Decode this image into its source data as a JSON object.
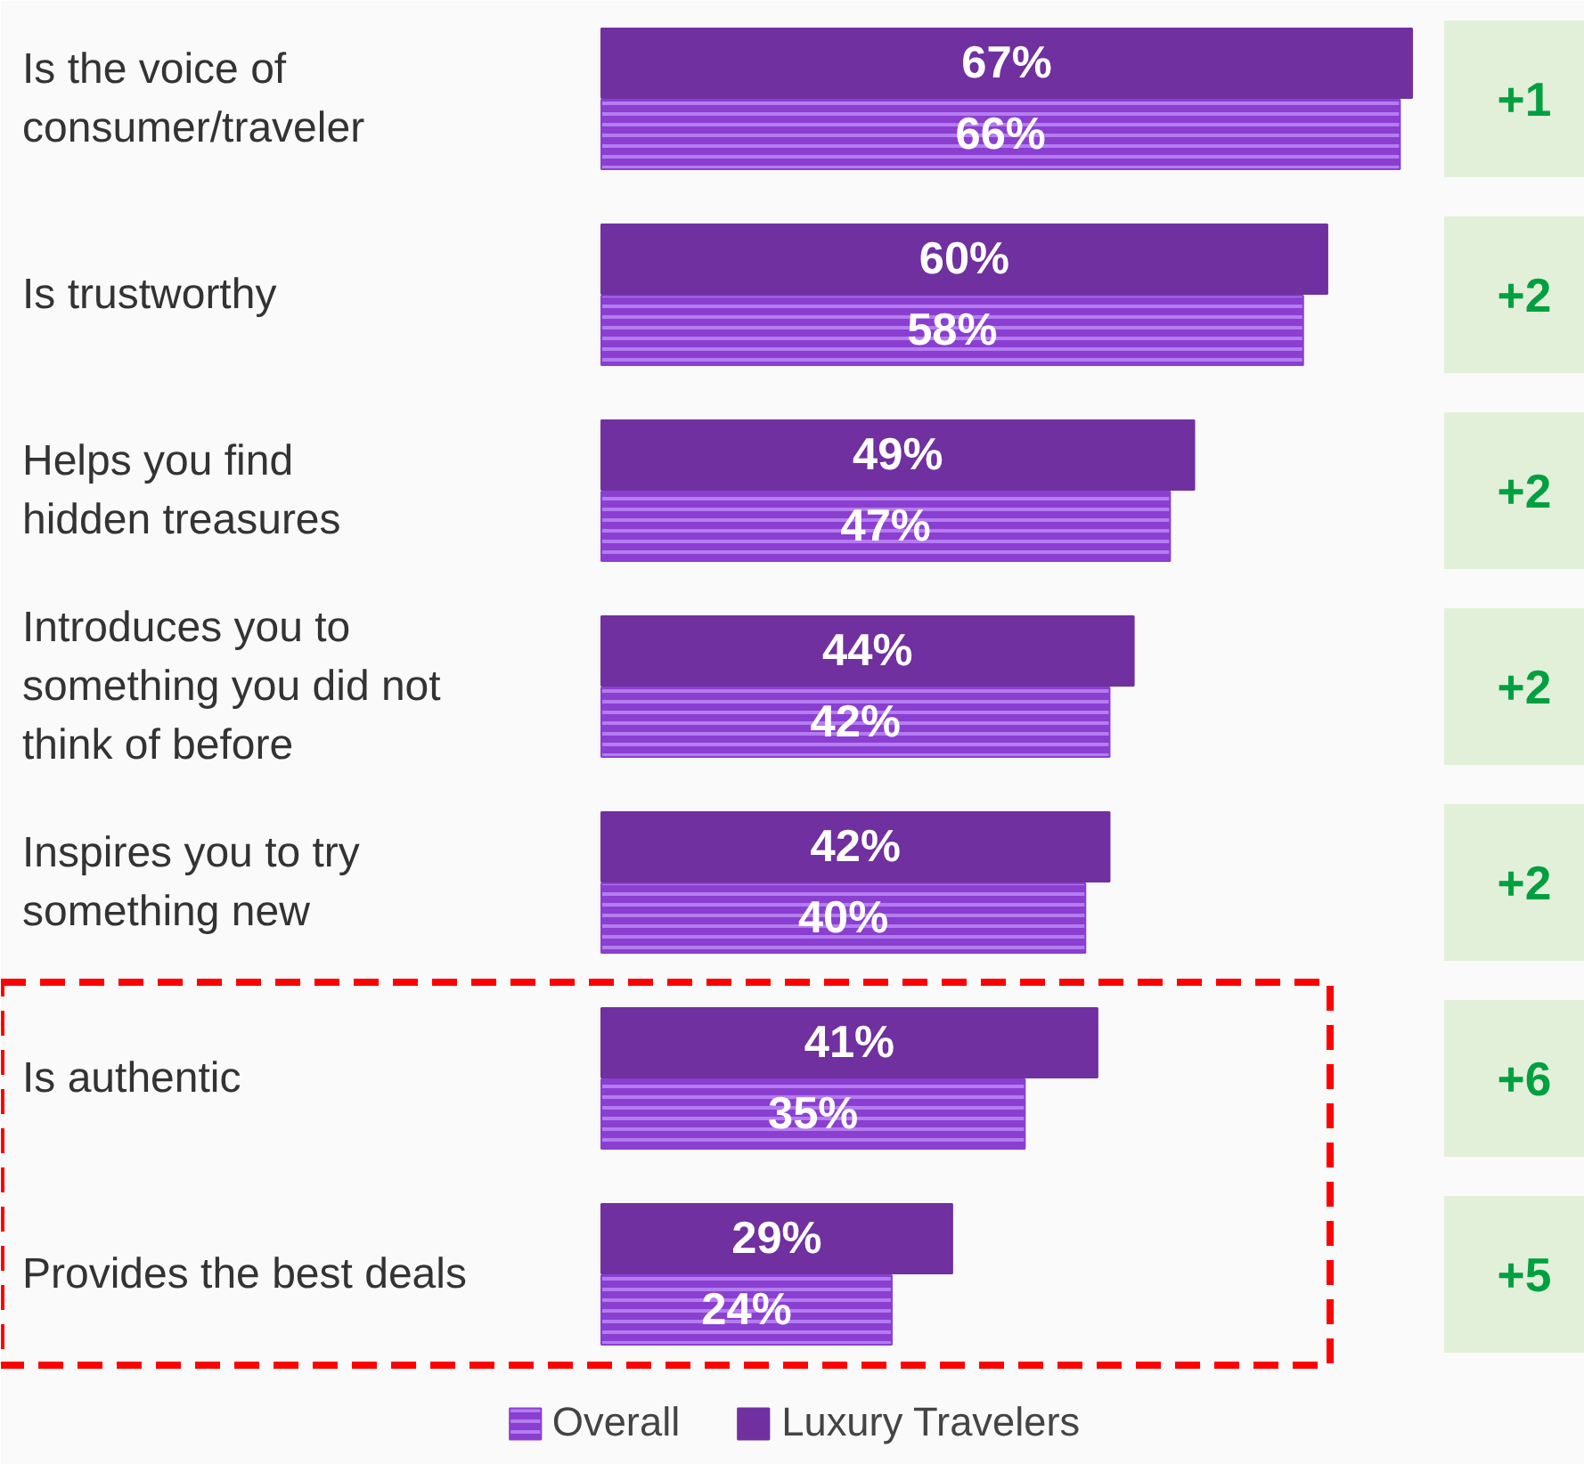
{
  "chart_data": {
    "type": "bar",
    "orientation": "horizontal",
    "legend": "bottom",
    "tick_labels": "y",
    "categories": [
      "Is the voice of\nconsumer/traveler",
      "Is trustworthy",
      "Helps you find\nhidden treasures",
      "Introduces you to\nsomething you did not\nthink of before",
      "Inspires you to try\nsomething new",
      "Is authentic",
      "Provides the best deals"
    ],
    "series": [
      {
        "name": "Luxury Travelers",
        "color": "#7030a0",
        "values": [
          67,
          60,
          49,
          44,
          42,
          41,
          29
        ],
        "value_labels": [
          "67%",
          "60%",
          "49%",
          "44%",
          "42%",
          "41%",
          "29%"
        ]
      },
      {
        "name": "Overall",
        "color": "#8a3fd0",
        "values": [
          66,
          58,
          47,
          42,
          40,
          35,
          24
        ],
        "value_labels": [
          "66%",
          "58%",
          "47%",
          "42%",
          "40%",
          "35%",
          "24%"
        ]
      }
    ],
    "annotations": [
      "+1",
      "+2",
      "+2",
      "+2",
      "+2",
      "+6",
      "+5"
    ]
  }
}
